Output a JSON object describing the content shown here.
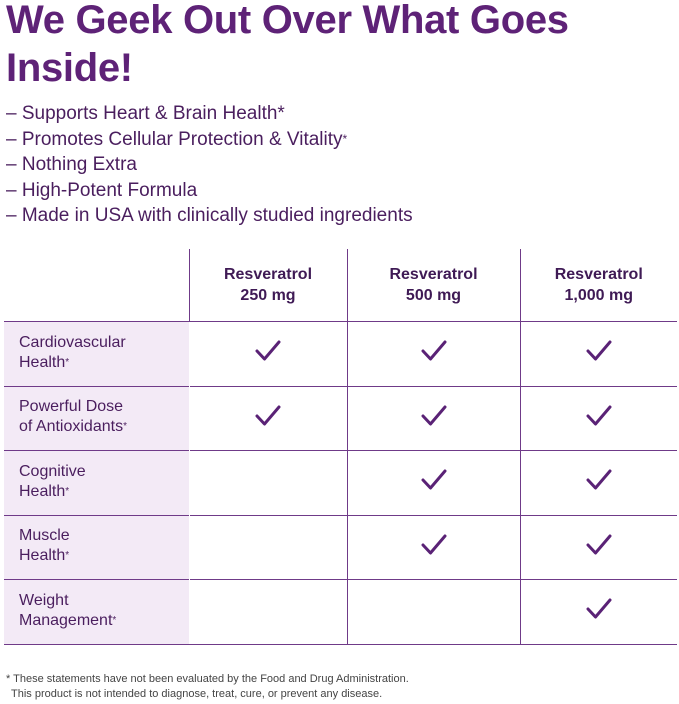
{
  "headline": "We Geek Out Over What Goes Inside!",
  "bullets": [
    {
      "text": "– Supports Heart & Brain Health*",
      "sup": ""
    },
    {
      "text": "– Promotes Cellular Protection & Vitality",
      "sup": "*"
    },
    {
      "text": "– Nothing Extra",
      "sup": ""
    },
    {
      "text": "– High-Potent Formula",
      "sup": ""
    },
    {
      "text": "– Made in USA with clinically studied ingredients",
      "sup": ""
    }
  ],
  "table": {
    "columns": [
      {
        "line1": "Resveratrol",
        "line2": "250 mg"
      },
      {
        "line1": "Resveratrol",
        "line2": "500 mg"
      },
      {
        "line1": "Resveratrol",
        "line2": "1,000 mg"
      }
    ],
    "rows": [
      {
        "line1": "Cardiovascular",
        "line2": "Health",
        "sup": "*",
        "checks": [
          true,
          true,
          true
        ]
      },
      {
        "line1": "Powerful Dose",
        "line2": "of Antioxidants",
        "sup": "*",
        "checks": [
          true,
          true,
          true
        ]
      },
      {
        "line1": "Cognitive",
        "line2": "Health",
        "sup": "*",
        "checks": [
          false,
          true,
          true
        ]
      },
      {
        "line1": "Muscle",
        "line2": "Health",
        "sup": "*",
        "checks": [
          false,
          true,
          true
        ]
      },
      {
        "line1": "Weight",
        "line2": "Management",
        "sup": "*",
        "checks": [
          false,
          false,
          true
        ]
      }
    ],
    "check_color": "#5a2276"
  },
  "footnote": {
    "line1": "* These statements have not been evaluated by the Food and Drug Administration.",
    "line2": "This product is not intended to diagnose, treat, cure, or prevent any disease."
  }
}
